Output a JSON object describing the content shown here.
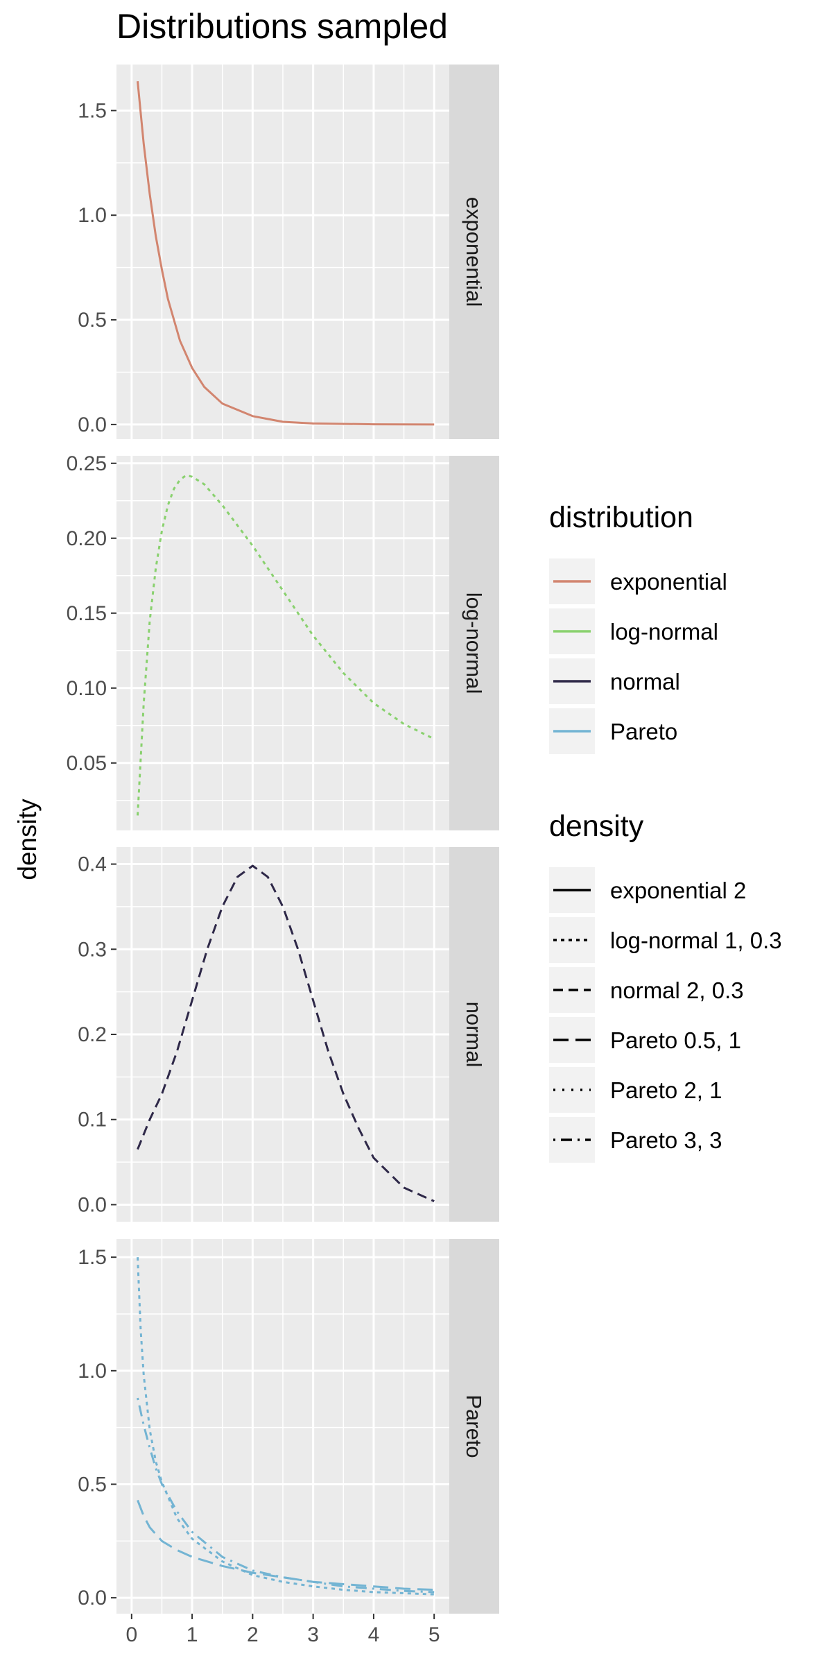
{
  "chart_data": {
    "type": "line",
    "title": "Distributions sampled",
    "xlabel": "",
    "ylabel": "density",
    "facet_by": "distribution",
    "facet_strip_position": "right",
    "x_range": [
      0,
      5
    ],
    "x_ticks": [
      "0",
      "1",
      "2",
      "3",
      "4",
      "5"
    ],
    "grid": true,
    "background": "#EBEBEB",
    "strip_background": "#D9D9D9",
    "colors": {
      "exponential": "#D2856F",
      "log-normal": "#89D16E",
      "normal": "#2E2848",
      "Pareto": "#73B4D3"
    },
    "facets": [
      {
        "label": "exponential",
        "ylim": [
          -0.07,
          1.72
        ],
        "y_ticks": [
          "0.0",
          "0.5",
          "1.0",
          "1.5"
        ],
        "y_tick_values": [
          0,
          0.5,
          1.0,
          1.5
        ],
        "series": [
          {
            "name": "exponential 2",
            "linetype": "solid",
            "x": [
              0.1,
              0.2,
              0.3,
              0.4,
              0.5,
              0.6,
              0.8,
              1.0,
              1.2,
              1.5,
              2.0,
              2.5,
              3.0,
              4.0,
              5.0
            ],
            "y": [
              1.64,
              1.34,
              1.1,
              0.9,
              0.74,
              0.6,
              0.4,
              0.27,
              0.18,
              0.1,
              0.04,
              0.013,
              0.005,
              0.001,
              0.0
            ]
          }
        ]
      },
      {
        "label": "log-normal",
        "ylim": [
          0.005,
          0.255
        ],
        "y_ticks": [
          "0.05",
          "0.10",
          "0.15",
          "0.20",
          "0.25"
        ],
        "y_tick_values": [
          0.05,
          0.1,
          0.15,
          0.2,
          0.25
        ],
        "series": [
          {
            "name": "log-normal 1, 0.3",
            "linetype": "dotted",
            "x": [
              0.1,
              0.2,
              0.3,
              0.4,
              0.5,
              0.6,
              0.7,
              0.8,
              0.9,
              1.0,
              1.2,
              1.5,
              2.0,
              2.5,
              3.0,
              3.5,
              4.0,
              4.5,
              5.0
            ],
            "y": [
              0.015,
              0.09,
              0.145,
              0.18,
              0.205,
              0.222,
              0.233,
              0.239,
              0.242,
              0.241,
              0.236,
              0.222,
              0.195,
              0.165,
              0.135,
              0.11,
              0.09,
              0.076,
              0.066
            ]
          }
        ]
      },
      {
        "label": "normal",
        "ylim": [
          -0.02,
          0.42
        ],
        "y_ticks": [
          "0.0",
          "0.1",
          "0.2",
          "0.3",
          "0.4"
        ],
        "y_tick_values": [
          0,
          0.1,
          0.2,
          0.3,
          0.4
        ],
        "series": [
          {
            "name": "normal 2, 0.3",
            "linetype": "dashed",
            "x": [
              0.1,
              0.3,
              0.5,
              0.75,
              1.0,
              1.25,
              1.5,
              1.75,
              2.0,
              2.25,
              2.5,
              2.75,
              3.0,
              3.25,
              3.5,
              3.75,
              4.0,
              4.5,
              5.0
            ],
            "y": [
              0.065,
              0.1,
              0.13,
              0.18,
              0.24,
              0.3,
              0.35,
              0.385,
              0.398,
              0.385,
              0.35,
              0.3,
              0.24,
              0.18,
              0.13,
              0.09,
              0.055,
              0.02,
              0.004
            ]
          }
        ]
      },
      {
        "label": "Pareto",
        "ylim": [
          -0.07,
          1.58
        ],
        "y_ticks": [
          "0.0",
          "0.5",
          "1.0",
          "1.5"
        ],
        "y_tick_values": [
          0,
          0.5,
          1.0,
          1.5
        ],
        "series": [
          {
            "name": "Pareto 0.5, 1",
            "linetype": "longdash",
            "x": [
              0.1,
              0.2,
              0.3,
              0.5,
              0.75,
              1.0,
              1.5,
              2.0,
              2.5,
              3.0,
              3.5,
              4.0,
              4.5,
              5.0
            ],
            "y": [
              0.43,
              0.36,
              0.31,
              0.25,
              0.21,
              0.18,
              0.14,
              0.11,
              0.09,
              0.07,
              0.06,
              0.05,
              0.04,
              0.035
            ]
          },
          {
            "name": "Pareto 2, 1",
            "linetype": "dotted",
            "x": [
              0.1,
              0.15,
              0.2,
              0.3,
              0.4,
              0.5,
              0.75,
              1.0,
              1.5,
              2.0,
              2.5,
              3.0,
              3.5,
              4.0,
              4.5,
              5.0
            ],
            "y": [
              1.5,
              1.18,
              0.98,
              0.74,
              0.6,
              0.51,
              0.35,
              0.26,
              0.16,
              0.1,
              0.07,
              0.05,
              0.035,
              0.025,
              0.02,
              0.015
            ]
          },
          {
            "name": "Pareto 3, 3",
            "linetype": "dotdash",
            "x": [
              0.1,
              0.2,
              0.3,
              0.4,
              0.5,
              0.75,
              1.0,
              1.5,
              2.0,
              2.5,
              3.0,
              3.5,
              4.0,
              4.5,
              5.0
            ],
            "y": [
              0.88,
              0.76,
              0.66,
              0.57,
              0.5,
              0.38,
              0.29,
              0.18,
              0.12,
              0.09,
              0.07,
              0.05,
              0.04,
              0.03,
              0.025
            ]
          }
        ]
      }
    ],
    "legends": [
      {
        "title": "distribution",
        "placement": "right",
        "entries": [
          {
            "label": "exponential",
            "color": "#D2856F",
            "linetype": "solid"
          },
          {
            "label": "log-normal",
            "color": "#89D16E",
            "linetype": "solid"
          },
          {
            "label": "normal",
            "color": "#2E2848",
            "linetype": "solid"
          },
          {
            "label": "Pareto",
            "color": "#73B4D3",
            "linetype": "solid"
          }
        ]
      },
      {
        "title": "density",
        "placement": "right",
        "entries": [
          {
            "label": "exponential 2",
            "color": "#000000",
            "linetype": "solid"
          },
          {
            "label": "log-normal 1, 0.3",
            "color": "#000000",
            "linetype": "dotted"
          },
          {
            "label": "normal 2, 0.3",
            "color": "#000000",
            "linetype": "dashed"
          },
          {
            "label": "Pareto 0.5, 1",
            "color": "#000000",
            "linetype": "longdash"
          },
          {
            "label": "Pareto 2, 1",
            "color": "#000000",
            "linetype": "dotted2"
          },
          {
            "label": "Pareto 3, 3",
            "color": "#000000",
            "linetype": "dotdash"
          }
        ]
      }
    ]
  }
}
